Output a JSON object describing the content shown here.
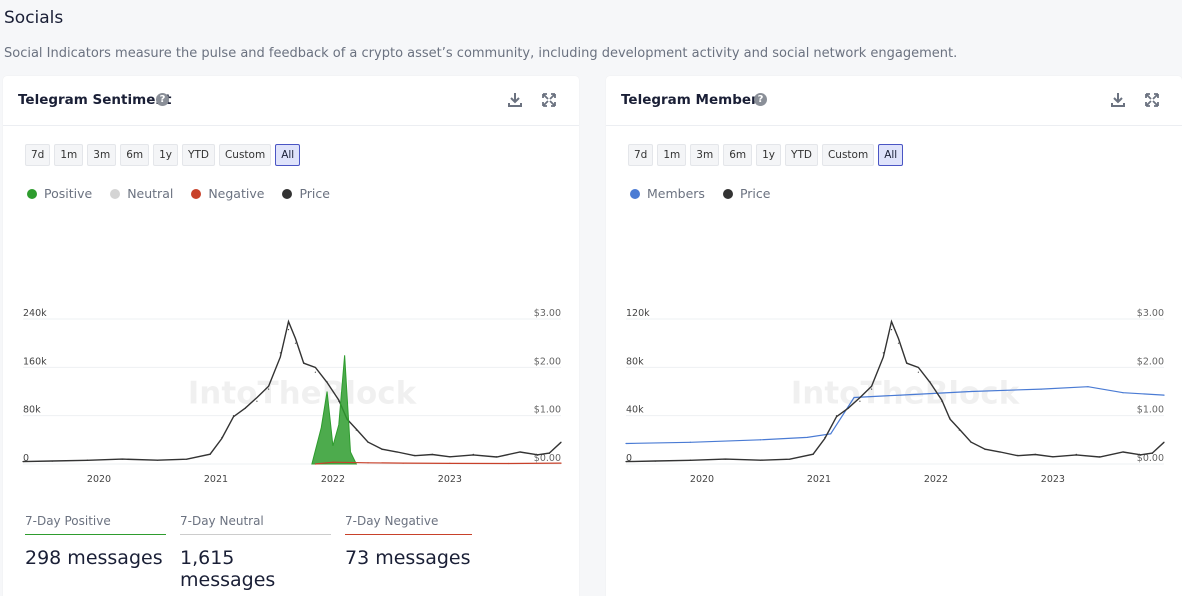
{
  "page": {
    "title": "Socials",
    "description": "Social Indicators measure the pulse and feedback of a crypto asset’s community, including development activity and social network engagement."
  },
  "ranges": [
    "7d",
    "1m",
    "3m",
    "6m",
    "1y",
    "YTD",
    "Custom",
    "All"
  ],
  "active_range": "All",
  "watermark": "IntoTheBlock",
  "sentiment_card": {
    "title": "Telegram Sentiment",
    "legend": [
      {
        "label": "Positive",
        "color": "#2e9c2e"
      },
      {
        "label": "Neutral",
        "color": "#d4d4d4"
      },
      {
        "label": "Negative",
        "color": "#c8412a"
      },
      {
        "label": "Price",
        "color": "#333333"
      }
    ],
    "stats": [
      {
        "label": "7-Day Positive",
        "value": "298 messages",
        "color": "#2e9c2e"
      },
      {
        "label": "7-Day Neutral",
        "value": "1,615 messages",
        "color": "#cccccc"
      },
      {
        "label": "7-Day Negative",
        "value": "73 messages",
        "color": "#c8412a"
      }
    ]
  },
  "members_card": {
    "title": "Telegram Members",
    "legend": [
      {
        "label": "Members",
        "color": "#4a7bd4"
      },
      {
        "label": "Price",
        "color": "#333333"
      }
    ]
  },
  "chart_data": [
    {
      "type": "line",
      "title": "Telegram Sentiment",
      "x_ticks": [
        "2020",
        "2021",
        "2022",
        "2023"
      ],
      "y_left_ticks": [
        "0",
        "80k",
        "160k",
        "240k"
      ],
      "y_left_lim": [
        0,
        240000
      ],
      "y_right_ticks": [
        "$0.00",
        "$1.00",
        "$2.00",
        "$3.00"
      ],
      "y_right_lim": [
        0,
        3
      ],
      "navigator_ticks": [
        "2020",
        "2022"
      ],
      "x": [
        2019.35,
        2019.6,
        2019.9,
        2020.2,
        2020.5,
        2020.75,
        2020.95,
        2021.05,
        2021.15,
        2021.25,
        2021.35,
        2021.45,
        2021.55,
        2021.62,
        2021.68,
        2021.75,
        2021.85,
        2021.95,
        2022.05,
        2022.12,
        2022.2,
        2022.3,
        2022.42,
        2022.55,
        2022.7,
        2022.85,
        2023.0,
        2023.2,
        2023.4,
        2023.6,
        2023.75,
        2023.85,
        2023.95
      ],
      "series": [
        {
          "name": "Price",
          "axis": "right",
          "values": [
            0.05,
            0.06,
            0.08,
            0.1,
            0.08,
            0.1,
            0.2,
            0.55,
            1.0,
            1.15,
            1.3,
            1.55,
            2.3,
            2.78,
            2.5,
            2.1,
            1.9,
            1.7,
            1.3,
            0.95,
            0.7,
            0.45,
            0.3,
            0.25,
            0.18,
            0.2,
            0.15,
            0.2,
            0.15,
            0.25,
            0.18,
            0.22,
            0.45
          ]
        },
        {
          "name": "Positive",
          "axis": "left",
          "x": [
            2021.82,
            2021.9,
            2021.95,
            2022.0,
            2022.05,
            2022.1,
            2022.15,
            2022.2
          ],
          "values": [
            0,
            60000,
            120000,
            30000,
            65000,
            180000,
            20000,
            0
          ]
        },
        {
          "name": "Negative",
          "axis": "left",
          "x": [
            2021.85,
            2022.0,
            2022.3,
            2022.6,
            2023.0,
            2023.5,
            2023.95
          ],
          "values": [
            0,
            3000,
            2000,
            1500,
            1000,
            800,
            1500
          ]
        }
      ]
    },
    {
      "type": "line",
      "title": "Telegram Members",
      "x_ticks": [
        "2020",
        "2021",
        "2022",
        "2023"
      ],
      "y_left_ticks": [
        "0",
        "40k",
        "80k",
        "120k"
      ],
      "y_left_lim": [
        0,
        120000
      ],
      "y_right_ticks": [
        "$0.00",
        "$1.00",
        "$2.00",
        "$3.00"
      ],
      "y_right_lim": [
        0,
        3
      ],
      "navigator_ticks": [
        "2020",
        "2022"
      ],
      "x": [
        2019.35,
        2019.6,
        2019.9,
        2020.2,
        2020.5,
        2020.75,
        2020.95,
        2021.05,
        2021.15,
        2021.25,
        2021.35,
        2021.45,
        2021.55,
        2021.62,
        2021.68,
        2021.75,
        2021.85,
        2021.95,
        2022.05,
        2022.12,
        2022.2,
        2022.3,
        2022.42,
        2022.55,
        2022.7,
        2022.85,
        2023.0,
        2023.2,
        2023.4,
        2023.6,
        2023.75,
        2023.85,
        2023.95
      ],
      "series": [
        {
          "name": "Members",
          "axis": "left",
          "x": [
            2019.35,
            2019.9,
            2020.5,
            2020.9,
            2021.1,
            2021.3,
            2021.7,
            2022.3,
            2022.9,
            2023.3,
            2023.6,
            2023.95
          ],
          "values": [
            17000,
            18000,
            20000,
            22000,
            25000,
            55000,
            57000,
            60000,
            62000,
            64000,
            59000,
            57000
          ]
        },
        {
          "name": "Price",
          "axis": "right",
          "values": [
            0.05,
            0.06,
            0.08,
            0.1,
            0.08,
            0.1,
            0.2,
            0.55,
            1.0,
            1.15,
            1.3,
            1.55,
            2.3,
            2.78,
            2.5,
            2.1,
            1.9,
            1.7,
            1.3,
            0.95,
            0.7,
            0.45,
            0.3,
            0.25,
            0.18,
            0.2,
            0.15,
            0.2,
            0.15,
            0.25,
            0.18,
            0.22,
            0.45
          ]
        }
      ]
    }
  ]
}
